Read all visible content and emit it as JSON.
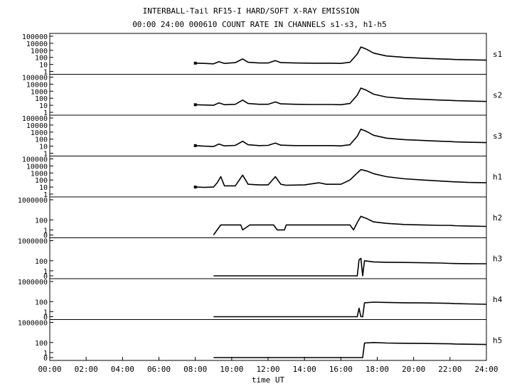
{
  "chart_data": {
    "type": "line",
    "title": "INTERBALL-Tail RF15-I HARD/SOFT X-RAY EMISSION",
    "subtitle": "00:00 24:00 000610  COUNT RATE IN CHANNELS s1-s3, h1-h5",
    "xlabel": "time UT",
    "x_unit": "hours UT",
    "xlim": [
      0,
      24
    ],
    "x_ticks": [
      "00:00",
      "02:00",
      "04:00",
      "06:00",
      "08:00",
      "10:00",
      "12:00",
      "14:00",
      "16:00",
      "18:00",
      "20:00",
      "22:00",
      "24:00"
    ],
    "y_scale": "log",
    "grid": false,
    "panels": [
      {
        "name": "s1",
        "y_ticks": [
          "100000",
          "10000",
          "1000",
          "100",
          "10",
          "1"
        ],
        "points": [
          [
            8.0,
            15
          ],
          [
            8.5,
            14
          ],
          [
            9.0,
            12
          ],
          [
            9.3,
            25
          ],
          [
            9.6,
            14
          ],
          [
            10.2,
            18
          ],
          [
            10.6,
            60
          ],
          [
            10.9,
            20
          ],
          [
            11.5,
            16
          ],
          [
            12.0,
            16
          ],
          [
            12.4,
            35
          ],
          [
            12.7,
            18
          ],
          [
            13.5,
            16
          ],
          [
            14.5,
            15
          ],
          [
            15.5,
            15
          ],
          [
            16.0,
            14
          ],
          [
            16.5,
            20
          ],
          [
            16.9,
            300
          ],
          [
            17.1,
            3000
          ],
          [
            17.4,
            1500
          ],
          [
            17.8,
            400
          ],
          [
            18.5,
            160
          ],
          [
            19.5,
            100
          ],
          [
            20.5,
            75
          ],
          [
            21.5,
            60
          ],
          [
            22.0,
            55
          ],
          [
            22.3,
            50
          ],
          [
            23.0,
            45
          ],
          [
            24.0,
            40
          ]
        ]
      },
      {
        "name": "s2",
        "y_ticks": [
          "100000",
          "10000",
          "1000",
          "100",
          "10",
          "1"
        ],
        "points": [
          [
            8.0,
            12
          ],
          [
            8.5,
            11
          ],
          [
            9.0,
            10
          ],
          [
            9.3,
            22
          ],
          [
            9.6,
            12
          ],
          [
            10.2,
            14
          ],
          [
            10.6,
            55
          ],
          [
            10.9,
            18
          ],
          [
            11.5,
            14
          ],
          [
            12.0,
            14
          ],
          [
            12.4,
            30
          ],
          [
            12.7,
            16
          ],
          [
            13.5,
            14
          ],
          [
            14.5,
            13
          ],
          [
            15.5,
            13
          ],
          [
            16.0,
            12
          ],
          [
            16.5,
            18
          ],
          [
            16.9,
            280
          ],
          [
            17.1,
            2800
          ],
          [
            17.4,
            1400
          ],
          [
            17.8,
            380
          ],
          [
            18.5,
            150
          ],
          [
            19.5,
            90
          ],
          [
            20.5,
            70
          ],
          [
            21.5,
            55
          ],
          [
            22.0,
            50
          ],
          [
            22.3,
            45
          ],
          [
            23.0,
            40
          ],
          [
            24.0,
            35
          ]
        ]
      },
      {
        "name": "s3",
        "y_ticks": [
          "100000",
          "10000",
          "1000",
          "100",
          "10",
          "1"
        ],
        "points": [
          [
            8.0,
            12
          ],
          [
            8.5,
            10
          ],
          [
            9.0,
            9
          ],
          [
            9.3,
            20
          ],
          [
            9.6,
            11
          ],
          [
            10.2,
            13
          ],
          [
            10.6,
            50
          ],
          [
            10.9,
            16
          ],
          [
            11.5,
            12
          ],
          [
            12.0,
            13
          ],
          [
            12.4,
            28
          ],
          [
            12.7,
            14
          ],
          [
            13.5,
            12
          ],
          [
            14.5,
            12
          ],
          [
            15.5,
            12
          ],
          [
            16.0,
            11
          ],
          [
            16.5,
            16
          ],
          [
            16.9,
            260
          ],
          [
            17.1,
            2600
          ],
          [
            17.4,
            1300
          ],
          [
            17.8,
            350
          ],
          [
            18.5,
            140
          ],
          [
            19.5,
            85
          ],
          [
            20.5,
            65
          ],
          [
            21.5,
            50
          ],
          [
            22.0,
            45
          ],
          [
            22.3,
            40
          ],
          [
            23.0,
            36
          ],
          [
            24.0,
            32
          ]
        ]
      },
      {
        "name": "h1",
        "y_ticks": [
          "100000",
          "10000",
          "1000",
          "100",
          "10",
          "1"
        ],
        "points": [
          [
            8.0,
            10
          ],
          [
            8.5,
            9
          ],
          [
            9.0,
            10
          ],
          [
            9.2,
            40
          ],
          [
            9.4,
            300
          ],
          [
            9.6,
            15
          ],
          [
            10.2,
            15
          ],
          [
            10.6,
            500
          ],
          [
            10.9,
            25
          ],
          [
            11.5,
            20
          ],
          [
            12.0,
            20
          ],
          [
            12.4,
            300
          ],
          [
            12.7,
            25
          ],
          [
            13.0,
            18
          ],
          [
            14.0,
            20
          ],
          [
            14.8,
            40
          ],
          [
            15.2,
            25
          ],
          [
            16.0,
            25
          ],
          [
            16.5,
            100
          ],
          [
            16.9,
            1000
          ],
          [
            17.1,
            3000
          ],
          [
            17.4,
            2000
          ],
          [
            17.8,
            800
          ],
          [
            18.5,
            300
          ],
          [
            19.5,
            150
          ],
          [
            20.5,
            100
          ],
          [
            21.5,
            70
          ],
          [
            22.0,
            60
          ],
          [
            22.3,
            55
          ],
          [
            23.0,
            45
          ],
          [
            24.0,
            40
          ]
        ]
      },
      {
        "name": "h2",
        "y_ticks": [
          "1000000",
          "100",
          "1",
          "0"
        ],
        "points": [
          [
            9.0,
            0
          ],
          [
            9.2,
            1
          ],
          [
            9.4,
            10
          ],
          [
            10.5,
            10
          ],
          [
            10.6,
            1
          ],
          [
            11.0,
            10
          ],
          [
            12.3,
            10
          ],
          [
            12.5,
            1
          ],
          [
            12.9,
            1
          ],
          [
            13.0,
            10
          ],
          [
            16.5,
            10
          ],
          [
            16.7,
            1
          ],
          [
            16.9,
            30
          ],
          [
            17.1,
            500
          ],
          [
            17.4,
            200
          ],
          [
            17.8,
            40
          ],
          [
            18.5,
            20
          ],
          [
            19.5,
            12
          ],
          [
            20.5,
            10
          ],
          [
            21.5,
            8
          ],
          [
            22.0,
            8
          ],
          [
            22.3,
            7
          ],
          [
            23.0,
            6
          ],
          [
            24.0,
            5
          ]
        ]
      },
      {
        "name": "h3",
        "y_ticks": [
          "1000000",
          "100",
          "1",
          "0"
        ],
        "points": [
          [
            9.0,
            0
          ],
          [
            16.9,
            0
          ],
          [
            17.0,
            150
          ],
          [
            17.1,
            300
          ],
          [
            17.2,
            0
          ],
          [
            17.3,
            100
          ],
          [
            17.8,
            60
          ],
          [
            18.5,
            50
          ],
          [
            19.5,
            45
          ],
          [
            20.5,
            40
          ],
          [
            21.5,
            35
          ],
          [
            22.0,
            30
          ],
          [
            22.3,
            28
          ],
          [
            23.0,
            26
          ],
          [
            24.0,
            25
          ]
        ]
      },
      {
        "name": "h4",
        "y_ticks": [
          "1000000",
          "100",
          "1",
          "0"
        ],
        "points": [
          [
            9.0,
            0
          ],
          [
            16.9,
            0
          ],
          [
            17.0,
            5
          ],
          [
            17.1,
            0
          ],
          [
            17.2,
            0
          ],
          [
            17.3,
            60
          ],
          [
            17.8,
            80
          ],
          [
            18.5,
            70
          ],
          [
            19.5,
            60
          ],
          [
            20.5,
            55
          ],
          [
            21.5,
            50
          ],
          [
            22.0,
            45
          ],
          [
            22.3,
            40
          ],
          [
            23.0,
            35
          ],
          [
            24.0,
            30
          ]
        ]
      },
      {
        "name": "h5",
        "y_ticks": [
          "1000000",
          "100",
          "1",
          "0"
        ],
        "points": [
          [
            9.0,
            0
          ],
          [
            17.2,
            0
          ],
          [
            17.3,
            80
          ],
          [
            17.8,
            100
          ],
          [
            18.5,
            80
          ],
          [
            19.5,
            70
          ],
          [
            20.5,
            65
          ],
          [
            21.5,
            60
          ],
          [
            22.0,
            55
          ],
          [
            22.3,
            50
          ],
          [
            23.0,
            45
          ],
          [
            24.0,
            40
          ]
        ]
      }
    ]
  }
}
